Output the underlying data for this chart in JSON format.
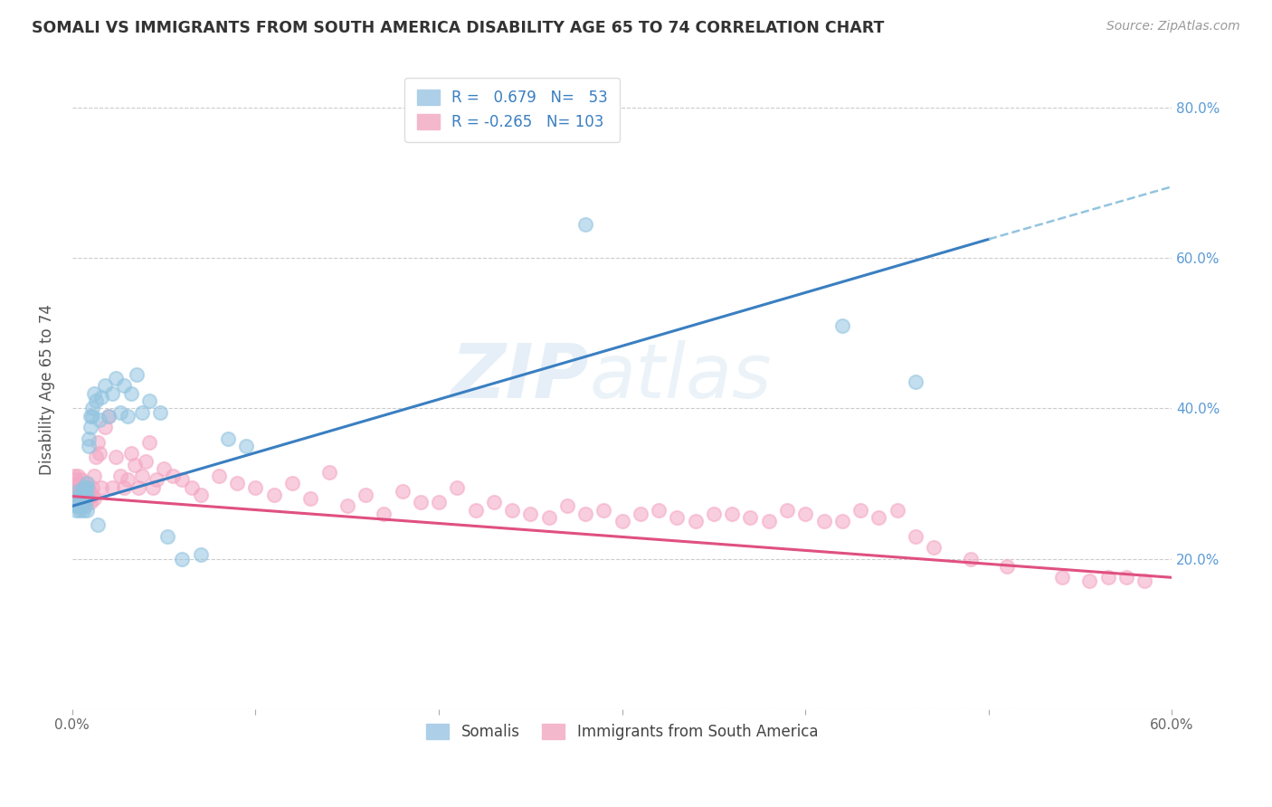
{
  "title": "SOMALI VS IMMIGRANTS FROM SOUTH AMERICA DISABILITY AGE 65 TO 74 CORRELATION CHART",
  "source": "Source: ZipAtlas.com",
  "ylabel": "Disability Age 65 to 74",
  "xlim": [
    0.0,
    0.6
  ],
  "ylim": [
    0.0,
    0.85
  ],
  "xticks": [
    0.0,
    0.1,
    0.2,
    0.3,
    0.4,
    0.5,
    0.6
  ],
  "yticks": [
    0.0,
    0.2,
    0.4,
    0.6,
    0.8
  ],
  "xticklabels": [
    "0.0%",
    "",
    "",
    "",
    "",
    "",
    "60.0%"
  ],
  "yticklabels_right": [
    "",
    "20.0%",
    "40.0%",
    "60.0%",
    "80.0%"
  ],
  "somali_color": "#93c4e0",
  "south_america_color": "#f4a7c3",
  "trendline_somali_color": "#3a7fc1",
  "trendline_sa_color": "#e05080",
  "trendline_dashed_color": "#93c4e0",
  "watermark": "ZIPatlas",
  "trendline_somali_x0": 0.0,
  "trendline_somali_y0": 0.27,
  "trendline_somali_x1": 0.5,
  "trendline_somali_y1": 0.625,
  "trendline_somali_dash_x0": 0.5,
  "trendline_somali_dash_y0": 0.625,
  "trendline_somali_dash_x1": 0.6,
  "trendline_somali_dash_y1": 0.695,
  "trendline_sa_x0": 0.0,
  "trendline_sa_y0": 0.283,
  "trendline_sa_x1": 0.6,
  "trendline_sa_y1": 0.175,
  "somali_x": [
    0.001,
    0.002,
    0.002,
    0.003,
    0.003,
    0.004,
    0.004,
    0.004,
    0.005,
    0.005,
    0.005,
    0.006,
    0.006,
    0.006,
    0.007,
    0.007,
    0.007,
    0.007,
    0.008,
    0.008,
    0.008,
    0.008,
    0.009,
    0.009,
    0.01,
    0.01,
    0.011,
    0.011,
    0.012,
    0.013,
    0.014,
    0.015,
    0.016,
    0.018,
    0.02,
    0.022,
    0.024,
    0.026,
    0.028,
    0.03,
    0.032,
    0.035,
    0.038,
    0.042,
    0.048,
    0.052,
    0.06,
    0.07,
    0.085,
    0.095,
    0.28,
    0.42,
    0.46
  ],
  "somali_y": [
    0.275,
    0.27,
    0.265,
    0.29,
    0.27,
    0.28,
    0.285,
    0.265,
    0.28,
    0.285,
    0.27,
    0.285,
    0.295,
    0.265,
    0.28,
    0.27,
    0.285,
    0.295,
    0.285,
    0.295,
    0.3,
    0.265,
    0.35,
    0.36,
    0.39,
    0.375,
    0.39,
    0.4,
    0.42,
    0.41,
    0.245,
    0.385,
    0.415,
    0.43,
    0.39,
    0.42,
    0.44,
    0.395,
    0.43,
    0.39,
    0.42,
    0.445,
    0.395,
    0.41,
    0.395,
    0.23,
    0.2,
    0.205,
    0.36,
    0.35,
    0.645,
    0.51,
    0.435
  ],
  "sa_x": [
    0.001,
    0.001,
    0.002,
    0.002,
    0.003,
    0.003,
    0.003,
    0.003,
    0.004,
    0.004,
    0.004,
    0.005,
    0.005,
    0.005,
    0.005,
    0.006,
    0.006,
    0.006,
    0.007,
    0.007,
    0.007,
    0.008,
    0.008,
    0.008,
    0.009,
    0.009,
    0.01,
    0.01,
    0.011,
    0.011,
    0.012,
    0.012,
    0.013,
    0.014,
    0.015,
    0.016,
    0.018,
    0.02,
    0.022,
    0.024,
    0.026,
    0.028,
    0.03,
    0.032,
    0.034,
    0.036,
    0.038,
    0.04,
    0.042,
    0.044,
    0.046,
    0.05,
    0.055,
    0.06,
    0.065,
    0.07,
    0.08,
    0.09,
    0.1,
    0.11,
    0.12,
    0.13,
    0.14,
    0.15,
    0.16,
    0.17,
    0.18,
    0.19,
    0.2,
    0.21,
    0.22,
    0.23,
    0.24,
    0.25,
    0.26,
    0.27,
    0.28,
    0.29,
    0.3,
    0.31,
    0.32,
    0.33,
    0.34,
    0.35,
    0.36,
    0.37,
    0.38,
    0.39,
    0.4,
    0.41,
    0.42,
    0.43,
    0.44,
    0.45,
    0.46,
    0.47,
    0.49,
    0.51,
    0.54,
    0.555,
    0.565,
    0.575,
    0.585
  ],
  "sa_y": [
    0.295,
    0.31,
    0.285,
    0.305,
    0.28,
    0.295,
    0.31,
    0.29,
    0.29,
    0.285,
    0.3,
    0.28,
    0.295,
    0.285,
    0.305,
    0.285,
    0.295,
    0.275,
    0.29,
    0.285,
    0.28,
    0.295,
    0.285,
    0.3,
    0.28,
    0.29,
    0.285,
    0.275,
    0.295,
    0.285,
    0.31,
    0.28,
    0.335,
    0.355,
    0.34,
    0.295,
    0.375,
    0.39,
    0.295,
    0.335,
    0.31,
    0.295,
    0.305,
    0.34,
    0.325,
    0.295,
    0.31,
    0.33,
    0.355,
    0.295,
    0.305,
    0.32,
    0.31,
    0.305,
    0.295,
    0.285,
    0.31,
    0.3,
    0.295,
    0.285,
    0.3,
    0.28,
    0.315,
    0.27,
    0.285,
    0.26,
    0.29,
    0.275,
    0.275,
    0.295,
    0.265,
    0.275,
    0.265,
    0.26,
    0.255,
    0.27,
    0.26,
    0.265,
    0.25,
    0.26,
    0.265,
    0.255,
    0.25,
    0.26,
    0.26,
    0.255,
    0.25,
    0.265,
    0.26,
    0.25,
    0.25,
    0.265,
    0.255,
    0.265,
    0.23,
    0.215,
    0.2,
    0.19,
    0.175,
    0.17,
    0.175,
    0.175,
    0.17
  ]
}
